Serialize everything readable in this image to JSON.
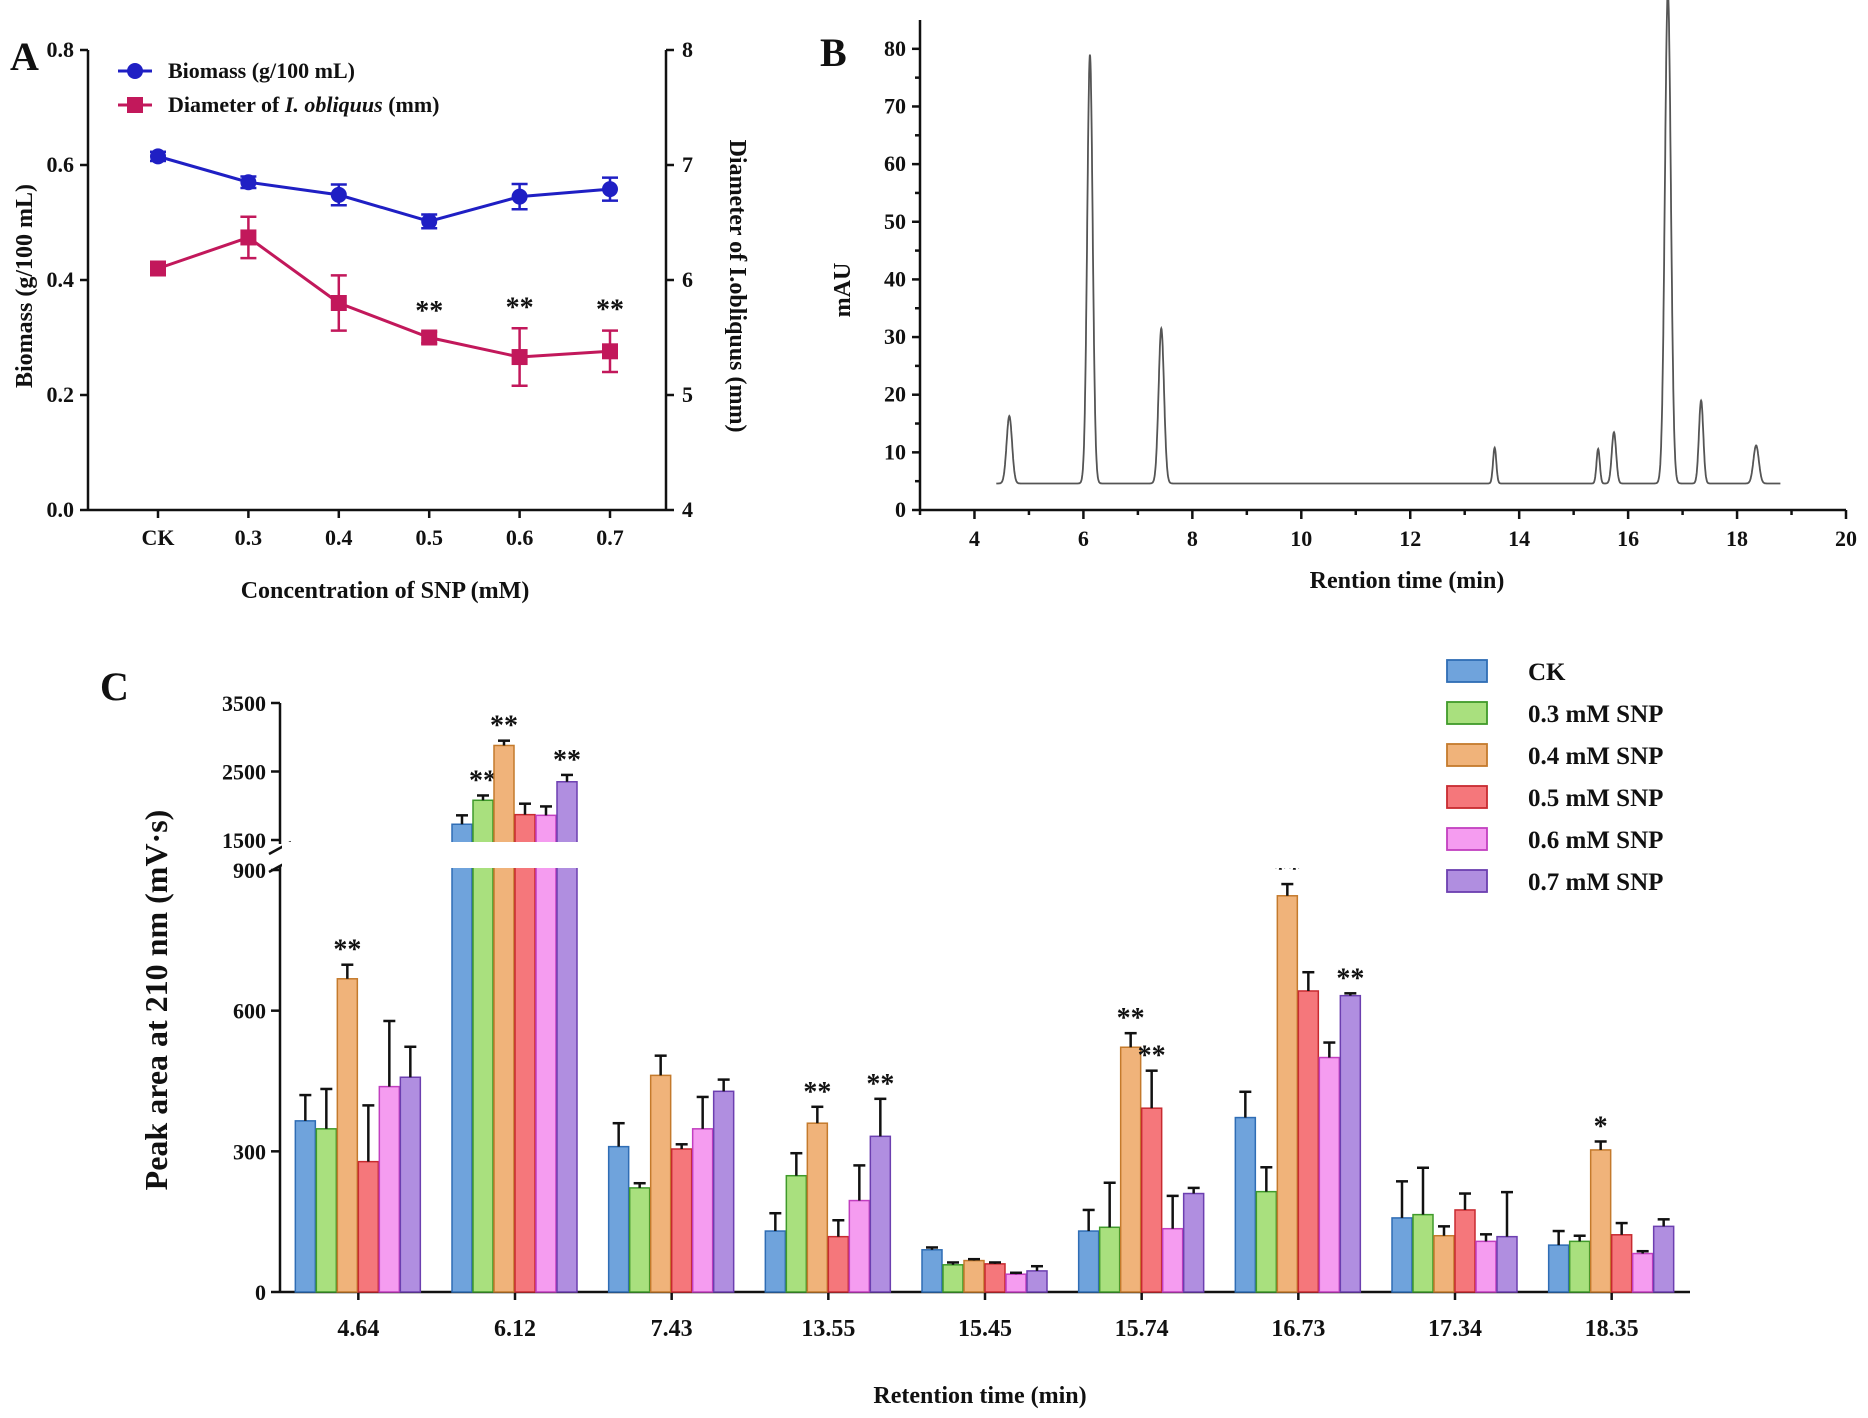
{
  "panels": {
    "a": "A",
    "b": "B",
    "c": "C"
  },
  "chart_data": [
    {
      "id": "A",
      "type": "line",
      "x_categories": [
        "CK",
        "0.3",
        "0.4",
        "0.5",
        "0.6",
        "0.7"
      ],
      "xlabel": "Concentration of SNP (mM)",
      "ylabel": "Biomass (g/100 mL)",
      "y2label": "Diameter of I.obliquus (mm)",
      "ylim": [
        0,
        0.8
      ],
      "yticks": [
        "0.0",
        "0.2",
        "0.4",
        "0.6",
        "0.8"
      ],
      "y2lim": [
        4,
        8
      ],
      "y2ticks": [
        "4",
        "5",
        "6",
        "7",
        "8"
      ],
      "series": [
        {
          "name": "Biomass (g/100 mL)",
          "legend_plain": "Biomass (g/100 mL)",
          "axis": "left",
          "color": "#1f1fc4",
          "marker": "circle",
          "values": [
            0.615,
            0.57,
            0.548,
            0.502,
            0.545,
            0.558
          ],
          "errors": [
            0.008,
            0.01,
            0.018,
            0.012,
            0.022,
            0.02
          ],
          "stars": [
            "",
            "",
            "",
            "",
            "",
            ""
          ]
        },
        {
          "name": "Diameter of I. obliquus (mm)",
          "legend_pre": "Diameter of ",
          "legend_ital": "I. obliquus",
          "legend_post": " (mm)",
          "axis": "right",
          "color": "#c2185b",
          "marker": "square",
          "values": [
            6.1,
            6.37,
            5.8,
            5.5,
            5.33,
            5.38
          ],
          "errors": [
            0.04,
            0.18,
            0.24,
            0.05,
            0.25,
            0.18
          ],
          "stars": [
            "",
            "",
            "",
            "**",
            "**",
            "**"
          ]
        }
      ]
    },
    {
      "id": "B",
      "type": "line",
      "xlabel": "Rention time (min)",
      "ylabel": "mAU",
      "xlim": [
        3,
        20
      ],
      "xticks": [
        "4",
        "6",
        "8",
        "10",
        "12",
        "14",
        "16",
        "18",
        "20"
      ],
      "ylim": [
        0,
        85
      ],
      "yticks": [
        "0",
        "10",
        "20",
        "30",
        "40",
        "50",
        "60",
        "70",
        "80"
      ],
      "baseline": 4.6,
      "range": [
        4.4,
        18.8
      ],
      "color": "#555555",
      "peaks": [
        {
          "rt": 4.64,
          "height": 16.3,
          "width": 0.05
        },
        {
          "rt": 6.12,
          "height": 79,
          "width": 0.05
        },
        {
          "rt": 7.43,
          "height": 31.5,
          "width": 0.05
        },
        {
          "rt": 13.55,
          "height": 10.8,
          "width": 0.03
        },
        {
          "rt": 15.45,
          "height": 10.6,
          "width": 0.03
        },
        {
          "rt": 15.74,
          "height": 13.5,
          "width": 0.04
        },
        {
          "rt": 16.73,
          "height": 90,
          "width": 0.055
        },
        {
          "rt": 17.34,
          "height": 19,
          "width": 0.04
        },
        {
          "rt": 18.35,
          "height": 11.2,
          "width": 0.05
        }
      ]
    },
    {
      "id": "C",
      "type": "bar",
      "xlabel": "Retention time (min)",
      "ylabel": "Peak area at 210 nm (mV·s)",
      "categories": [
        "4.64",
        "6.12",
        "7.43",
        "13.55",
        "15.45",
        "15.74",
        "16.73",
        "17.34",
        "18.35"
      ],
      "lower_ylim": [
        0,
        900
      ],
      "lower_yticks": [
        "0",
        "300",
        "600",
        "900"
      ],
      "upper_ylim": [
        1500,
        3500
      ],
      "upper_yticks": [
        "1500",
        "2500",
        "3500"
      ],
      "series": [
        {
          "name": "CK",
          "fill": "#6fa3dc",
          "stroke": "#2f6db5",
          "values": [
            365,
            1730,
            310,
            130,
            90,
            130,
            372,
            158,
            100
          ],
          "errors": [
            55,
            130,
            50,
            38,
            5,
            45,
            55,
            78,
            30
          ],
          "stars": [
            "",
            "",
            "",
            "",
            "",
            "",
            "",
            "",
            ""
          ]
        },
        {
          "name": "0.3 mM SNP",
          "fill": "#a9e07e",
          "stroke": "#3f9a2a",
          "values": [
            348,
            2080,
            222,
            248,
            58,
            138,
            214,
            165,
            108
          ],
          "errors": [
            85,
            70,
            10,
            48,
            5,
            95,
            52,
            100,
            12
          ],
          "stars": [
            "",
            "**",
            "",
            "",
            "",
            "",
            "",
            "",
            ""
          ]
        },
        {
          "name": "0.4 mM SNP",
          "fill": "#f0b37a",
          "stroke": "#c47a2c",
          "values": [
            668,
            2880,
            462,
            360,
            67,
            522,
            845,
            120,
            303
          ],
          "errors": [
            30,
            70,
            42,
            35,
            3,
            30,
            25,
            20,
            18
          ],
          "stars": [
            "**",
            "**",
            "",
            "**",
            "",
            "**",
            "**",
            "",
            "*"
          ]
        },
        {
          "name": "0.5 mM SNP",
          "fill": "#f5777b",
          "stroke": "#c82a30",
          "values": [
            278,
            1870,
            305,
            118,
            60,
            392,
            642,
            175,
            122
          ],
          "errors": [
            120,
            160,
            10,
            35,
            3,
            80,
            40,
            35,
            25
          ],
          "stars": [
            "",
            "",
            "",
            "",
            "",
            "**",
            "",
            "",
            ""
          ]
        },
        {
          "name": "0.6 mM SNP",
          "fill": "#f59cf0",
          "stroke": "#c23fc0",
          "values": [
            438,
            1860,
            348,
            195,
            38,
            135,
            500,
            108,
            82
          ],
          "errors": [
            140,
            130,
            68,
            75,
            3,
            70,
            32,
            15,
            5
          ],
          "stars": [
            "",
            "",
            "",
            "",
            "",
            "",
            "",
            "",
            ""
          ]
        },
        {
          "name": "0.7 mM SNP",
          "fill": "#b08ee0",
          "stroke": "#6c3fb0",
          "values": [
            458,
            2350,
            428,
            332,
            45,
            210,
            632,
            118,
            140
          ],
          "errors": [
            65,
            100,
            25,
            80,
            10,
            12,
            5,
            95,
            15
          ],
          "stars": [
            "",
            "**",
            "",
            "**",
            "",
            "",
            "**",
            "",
            ""
          ]
        }
      ]
    }
  ]
}
